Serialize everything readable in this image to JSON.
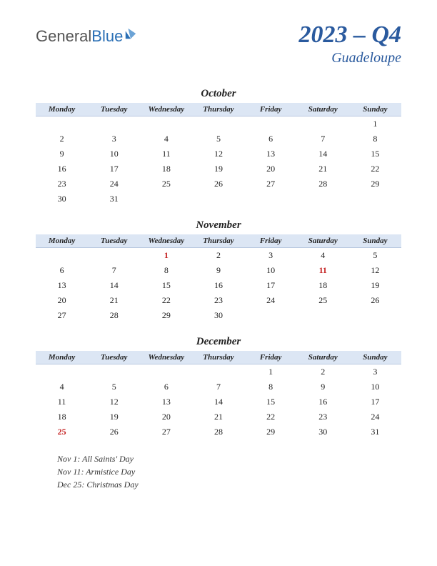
{
  "logo": {
    "part1": "General",
    "part2": "Blue"
  },
  "title": "2023 – Q4",
  "region": "Guadeloupe",
  "colors": {
    "header_bg": "#dce6f4",
    "title_color": "#2a5a9e",
    "holiday_color": "#c42020",
    "text_color": "#222222",
    "background": "#ffffff"
  },
  "day_headers": [
    "Monday",
    "Tuesday",
    "Wednesday",
    "Thursday",
    "Friday",
    "Saturday",
    "Sunday"
  ],
  "months": [
    {
      "name": "October",
      "weeks": [
        [
          "",
          "",
          "",
          "",
          "",
          "",
          "1"
        ],
        [
          "2",
          "3",
          "4",
          "5",
          "6",
          "7",
          "8"
        ],
        [
          "9",
          "10",
          "11",
          "12",
          "13",
          "14",
          "15"
        ],
        [
          "16",
          "17",
          "18",
          "19",
          "20",
          "21",
          "22"
        ],
        [
          "23",
          "24",
          "25",
          "26",
          "27",
          "28",
          "29"
        ],
        [
          "30",
          "31",
          "",
          "",
          "",
          "",
          ""
        ]
      ],
      "holidays": []
    },
    {
      "name": "November",
      "weeks": [
        [
          "",
          "",
          "1",
          "2",
          "3",
          "4",
          "5"
        ],
        [
          "6",
          "7",
          "8",
          "9",
          "10",
          "11",
          "12"
        ],
        [
          "13",
          "14",
          "15",
          "16",
          "17",
          "18",
          "19"
        ],
        [
          "20",
          "21",
          "22",
          "23",
          "24",
          "25",
          "26"
        ],
        [
          "27",
          "28",
          "29",
          "30",
          "",
          "",
          ""
        ]
      ],
      "holidays": [
        "1",
        "11"
      ]
    },
    {
      "name": "December",
      "weeks": [
        [
          "",
          "",
          "",
          "",
          "1",
          "2",
          "3"
        ],
        [
          "4",
          "5",
          "6",
          "7",
          "8",
          "9",
          "10"
        ],
        [
          "11",
          "12",
          "13",
          "14",
          "15",
          "16",
          "17"
        ],
        [
          "18",
          "19",
          "20",
          "21",
          "22",
          "23",
          "24"
        ],
        [
          "25",
          "26",
          "27",
          "28",
          "29",
          "30",
          "31"
        ]
      ],
      "holidays": [
        "25"
      ]
    }
  ],
  "holiday_list": [
    "Nov 1: All Saints' Day",
    "Nov 11: Armistice Day",
    "Dec 25: Christmas Day"
  ]
}
